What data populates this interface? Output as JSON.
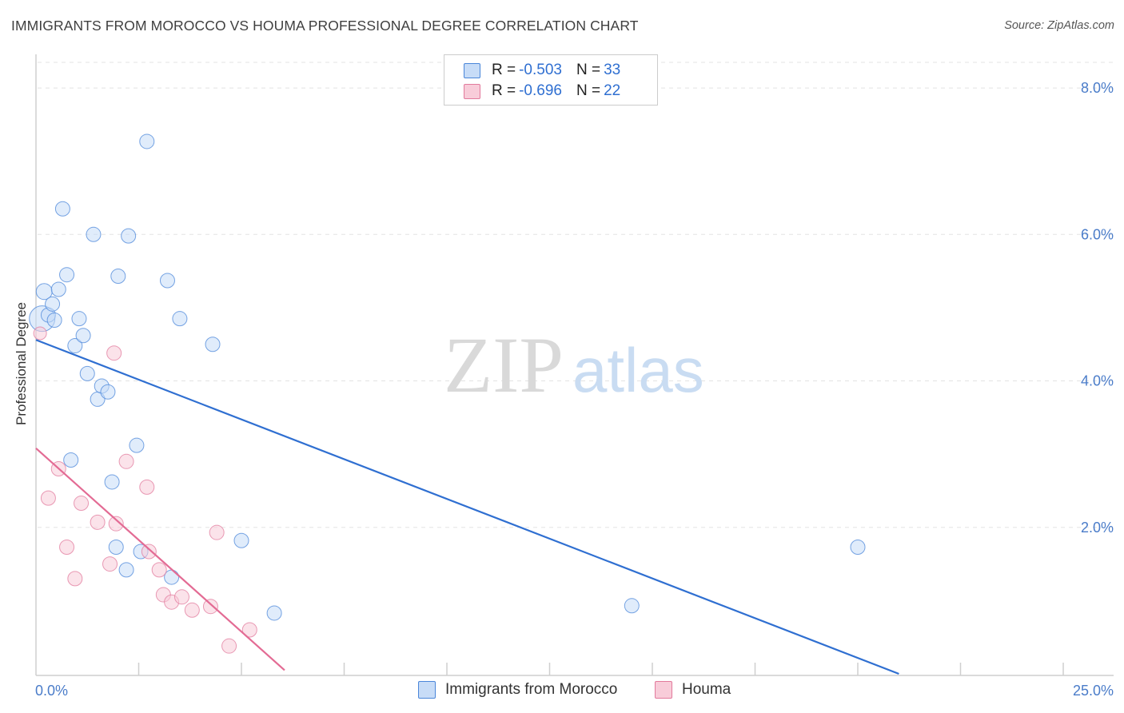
{
  "chart_data": {
    "type": "scatter",
    "title": "IMMIGRANTS FROM MOROCCO VS HOUMA PROFESSIONAL DEGREE CORRELATION CHART",
    "source": "Source: ZipAtlas.com",
    "xlabel": "",
    "ylabel": "Professional Degree",
    "xlim": [
      0,
      25
    ],
    "ylim": [
      0,
      8.35
    ],
    "x_tick_labels": [
      "0.0%",
      "25.0%"
    ],
    "y_ticks": [
      2,
      4,
      6,
      8
    ],
    "y_tick_labels": [
      "2.0%",
      "4.0%",
      "6.0%",
      "8.0%"
    ],
    "watermark": {
      "zip": "ZIP",
      "atlas": "atlas"
    },
    "legend": [
      {
        "r_label": "R = ",
        "r_value": "-0.503",
        "n_label": "N = ",
        "n_value": "33"
      },
      {
        "r_label": "R = ",
        "r_value": "-0.696",
        "n_label": "N = ",
        "n_value": "22"
      }
    ],
    "series": [
      {
        "name": "Immigrants from Morocco",
        "color": "#4a86d9",
        "fill": "#c7dcf7",
        "trend": {
          "x0": 0.0,
          "y0": 4.56,
          "x1": 21.0,
          "y1": 0.0
        },
        "points": [
          [
            0.15,
            4.85,
            16
          ],
          [
            0.2,
            5.22,
            10
          ],
          [
            0.3,
            4.9,
            9
          ],
          [
            0.4,
            5.05,
            9
          ],
          [
            0.45,
            4.83,
            9
          ],
          [
            0.55,
            5.25,
            9
          ],
          [
            0.65,
            6.35,
            9
          ],
          [
            0.75,
            5.45,
            9
          ],
          [
            0.85,
            2.92,
            9
          ],
          [
            0.95,
            4.48,
            9
          ],
          [
            1.05,
            4.85,
            9
          ],
          [
            1.15,
            4.62,
            9
          ],
          [
            1.25,
            4.1,
            9
          ],
          [
            1.4,
            6.0,
            9
          ],
          [
            1.5,
            3.75,
            9
          ],
          [
            1.6,
            3.93,
            9
          ],
          [
            1.75,
            3.85,
            9
          ],
          [
            1.85,
            2.62,
            9
          ],
          [
            1.95,
            1.73,
            9
          ],
          [
            2.0,
            5.43,
            9
          ],
          [
            2.2,
            1.42,
            9
          ],
          [
            2.25,
            5.98,
            9
          ],
          [
            2.45,
            3.12,
            9
          ],
          [
            2.55,
            1.67,
            9
          ],
          [
            2.7,
            7.27,
            9
          ],
          [
            3.2,
            5.37,
            9
          ],
          [
            3.3,
            1.32,
            9
          ],
          [
            3.5,
            4.85,
            9
          ],
          [
            4.3,
            4.5,
            9
          ],
          [
            5.0,
            1.82,
            9
          ],
          [
            5.8,
            0.83,
            9
          ],
          [
            14.5,
            0.93,
            9
          ],
          [
            20.0,
            1.73,
            9
          ]
        ]
      },
      {
        "name": "Houma",
        "color": "#e27a9c",
        "fill": "#f8ccd9",
        "trend": {
          "x0": 0.0,
          "y0": 3.08,
          "x1": 6.05,
          "y1": 0.05
        },
        "points": [
          [
            0.1,
            4.65,
            8
          ],
          [
            0.3,
            2.4,
            9
          ],
          [
            0.55,
            2.8,
            9
          ],
          [
            0.75,
            1.73,
            9
          ],
          [
            0.95,
            1.3,
            9
          ],
          [
            1.1,
            2.33,
            9
          ],
          [
            1.5,
            2.07,
            9
          ],
          [
            1.8,
            1.5,
            9
          ],
          [
            1.9,
            4.38,
            9
          ],
          [
            1.95,
            2.05,
            9
          ],
          [
            2.2,
            2.9,
            9
          ],
          [
            2.7,
            2.55,
            9
          ],
          [
            2.75,
            1.67,
            9
          ],
          [
            3.0,
            1.42,
            9
          ],
          [
            3.1,
            1.08,
            9
          ],
          [
            3.3,
            0.98,
            9
          ],
          [
            3.55,
            1.05,
            9
          ],
          [
            3.8,
            0.87,
            9
          ],
          [
            4.25,
            0.92,
            9
          ],
          [
            4.4,
            1.93,
            9
          ],
          [
            4.7,
            0.38,
            9
          ],
          [
            5.2,
            0.6,
            9
          ]
        ]
      }
    ]
  }
}
